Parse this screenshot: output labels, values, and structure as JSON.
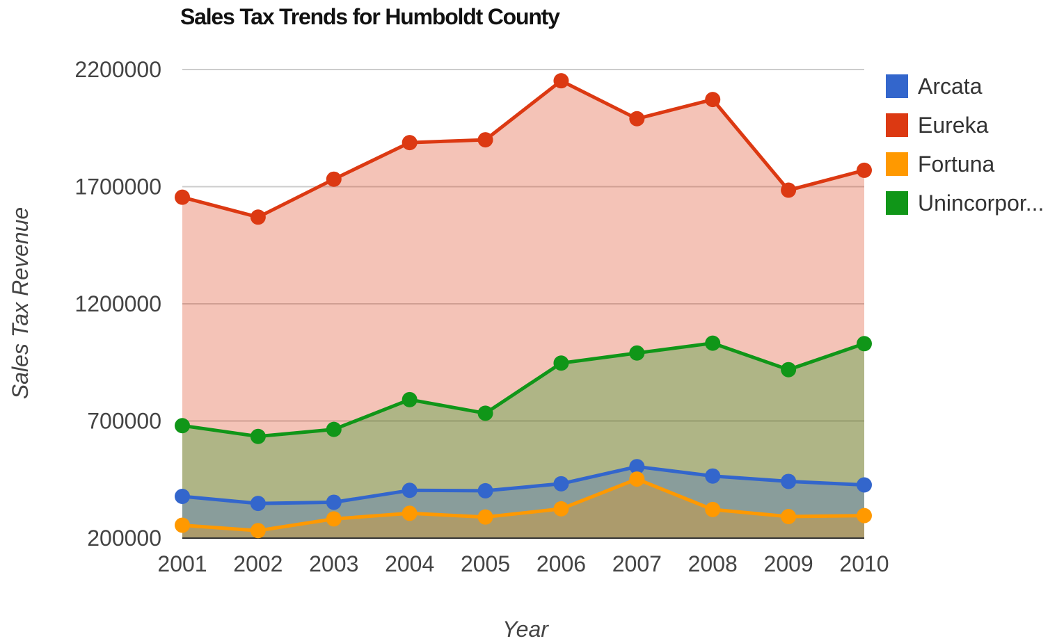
{
  "chart_data": {
    "type": "area",
    "title": "Sales Tax Trends for Humboldt County",
    "xlabel": "Year",
    "ylabel": "Sales Tax Revenue",
    "categories": [
      "2001",
      "2002",
      "2003",
      "2004",
      "2005",
      "2006",
      "2007",
      "2008",
      "2009",
      "2010"
    ],
    "y_ticks": [
      "200000",
      "700000",
      "1200000",
      "1700000",
      "2200000"
    ],
    "ylim": [
      200000,
      2200000
    ],
    "grid": true,
    "legend_position": "right",
    "series": [
      {
        "name": "Arcata",
        "color": "#3366cc",
        "values": [
          378000,
          348000,
          353000,
          404000,
          402000,
          432000,
          505000,
          465000,
          442000,
          427000
        ]
      },
      {
        "name": "Eureka",
        "color": "#dc3912",
        "values": [
          1655000,
          1570000,
          1732000,
          1888000,
          1900000,
          2152000,
          1990000,
          2072000,
          1685000,
          1770000
        ]
      },
      {
        "name": "Fortuna",
        "color": "#ff9900",
        "values": [
          255000,
          232000,
          282000,
          306000,
          290000,
          325000,
          452000,
          322000,
          292000,
          296000
        ]
      },
      {
        "name": "Unincorpor...",
        "color": "#109618",
        "values": [
          680000,
          634000,
          664000,
          791000,
          733000,
          947000,
          990000,
          1032000,
          919000,
          1030000
        ]
      }
    ],
    "draw_order": [
      "Eureka",
      "Unincorpor...",
      "Arcata",
      "Fortuna"
    ]
  }
}
